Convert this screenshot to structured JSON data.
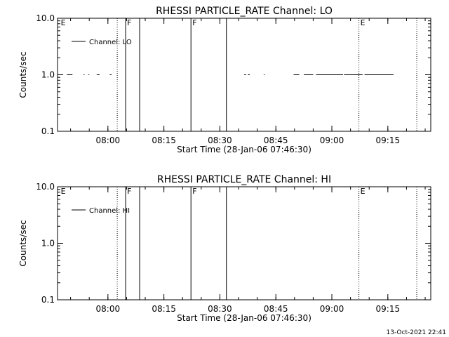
{
  "footer_timestamp": "13-Oct-2021 22:41",
  "chart_data": [
    {
      "type": "line",
      "title": "RHESSI PARTICLE_RATE Channel: LO",
      "xlabel": "Start Time (28-Jan-06 07:46:30)",
      "ylabel": "Counts/sec",
      "yscale": "log",
      "ylim": [
        0.1,
        10.0
      ],
      "xlim": [
        "07:46:30",
        "09:26:30"
      ],
      "xticks": [
        "08:00",
        "08:15",
        "08:30",
        "08:45",
        "09:00",
        "09:15"
      ],
      "yticks": [
        "0.1",
        "1.0",
        "10.0"
      ],
      "legend": "Channel: LO",
      "legend_position": "top-left",
      "series": [
        {
          "name": "Channel: LO",
          "segments": [
            {
              "x": [
                "07:49:00",
                "07:50:30"
              ],
              "y": [
                1.0,
                1.0
              ]
            },
            {
              "x": [
                "07:53:30",
                "07:53:45"
              ],
              "y": [
                1.0,
                1.0
              ]
            },
            {
              "x": [
                "07:54:45",
                "07:55:00"
              ],
              "y": [
                1.0,
                1.0
              ]
            },
            {
              "x": [
                "07:57:00",
                "07:57:45"
              ],
              "y": [
                1.0,
                1.0
              ]
            },
            {
              "x": [
                "08:00:30",
                "08:01:00"
              ],
              "y": [
                1.0,
                1.0
              ]
            },
            {
              "x": [
                "08:36:30",
                "08:37:00"
              ],
              "y": [
                1.0,
                1.0
              ]
            },
            {
              "x": [
                "08:37:30",
                "08:38:00"
              ],
              "y": [
                1.0,
                1.0
              ]
            },
            {
              "x": [
                "08:41:45",
                "08:42:00"
              ],
              "y": [
                1.0,
                1.0
              ]
            },
            {
              "x": [
                "08:49:45",
                "08:51:15"
              ],
              "y": [
                1.0,
                1.0
              ]
            },
            {
              "x": [
                "08:52:30",
                "08:55:00"
              ],
              "y": [
                1.0,
                1.0
              ]
            },
            {
              "x": [
                "08:55:45",
                "09:03:00"
              ],
              "y": [
                1.0,
                1.0
              ]
            },
            {
              "x": [
                "09:03:15",
                "09:08:15"
              ],
              "y": [
                1.0,
                1.0
              ]
            },
            {
              "x": [
                "09:08:45",
                "09:16:30"
              ],
              "y": [
                1.0,
                1.0
              ]
            }
          ]
        }
      ],
      "markers": [
        {
          "x": "07:47:00",
          "label": "E",
          "style": "none"
        },
        {
          "x": "08:02:30",
          "label": "",
          "style": "dotted"
        },
        {
          "x": "08:04:45",
          "label": "F",
          "style": "solid"
        },
        {
          "x": "08:08:30",
          "label": "",
          "style": "solid"
        },
        {
          "x": "08:22:15",
          "label": "F",
          "style": "solid"
        },
        {
          "x": "08:31:45",
          "label": "",
          "style": "solid"
        },
        {
          "x": "09:07:15",
          "label": "E",
          "style": "dotted"
        },
        {
          "x": "09:22:45",
          "label": "",
          "style": "dotted"
        }
      ]
    },
    {
      "type": "line",
      "title": "RHESSI PARTICLE_RATE Channel: HI",
      "xlabel": "Start Time (28-Jan-06 07:46:30)",
      "ylabel": "Counts/sec",
      "yscale": "log",
      "ylim": [
        0.1,
        10.0
      ],
      "xlim": [
        "07:46:30",
        "09:26:30"
      ],
      "xticks": [
        "08:00",
        "08:15",
        "08:30",
        "08:45",
        "09:00",
        "09:15"
      ],
      "yticks": [
        "0.1",
        "1.0",
        "10.0"
      ],
      "legend": "Channel: HI",
      "legend_position": "top-left",
      "series": [
        {
          "name": "Channel: HI",
          "segments": []
        }
      ],
      "markers": [
        {
          "x": "07:47:00",
          "label": "E",
          "style": "none"
        },
        {
          "x": "08:02:30",
          "label": "",
          "style": "dotted"
        },
        {
          "x": "08:04:45",
          "label": "F",
          "style": "solid"
        },
        {
          "x": "08:08:30",
          "label": "",
          "style": "solid"
        },
        {
          "x": "08:22:15",
          "label": "F",
          "style": "solid"
        },
        {
          "x": "08:31:45",
          "label": "",
          "style": "solid"
        },
        {
          "x": "09:07:15",
          "label": "E",
          "style": "dotted"
        },
        {
          "x": "09:22:45",
          "label": "",
          "style": "dotted"
        }
      ]
    }
  ]
}
